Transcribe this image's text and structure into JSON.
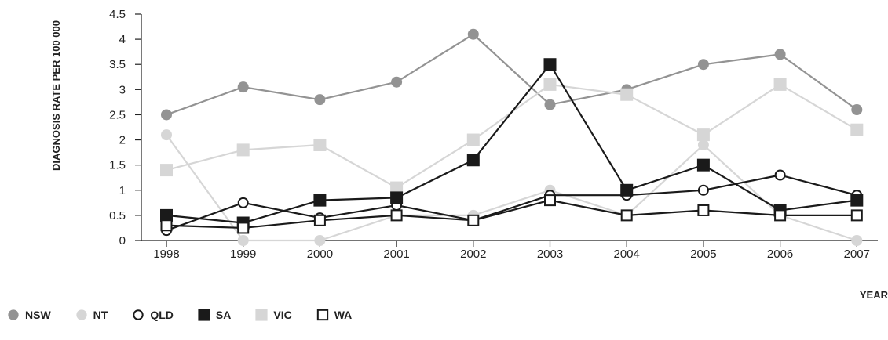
{
  "chart_data": {
    "type": "line",
    "ylabel": "DIAGNOSIS RATE PER 100 000",
    "xlabel": "YEAR",
    "categories": [
      "1998",
      "1999",
      "2000",
      "2001",
      "2002",
      "2003",
      "2004",
      "2005",
      "2006",
      "2007"
    ],
    "yticks": [
      "0",
      "0.5",
      "1",
      "1.5",
      "2",
      "2.5",
      "3",
      "3.5",
      "4",
      "4.5"
    ],
    "ylim": [
      0,
      4.5
    ],
    "grid": false,
    "legend_position": "bottom-left",
    "series": [
      {
        "name": "NSW",
        "color": "#939393",
        "marker": "circle-filled",
        "values": [
          2.5,
          3.05,
          2.8,
          3.15,
          4.1,
          2.7,
          3.0,
          3.5,
          3.7,
          2.6
        ]
      },
      {
        "name": "NT",
        "color": "#d6d6d6",
        "marker": "circle-filled",
        "values": [
          2.1,
          0.0,
          0.0,
          0.5,
          0.5,
          1.0,
          0.5,
          1.9,
          0.5,
          0.0
        ]
      },
      {
        "name": "QLD",
        "color": "#1a1a1a",
        "marker": "circle-open",
        "values": [
          0.2,
          0.75,
          0.45,
          0.7,
          0.4,
          0.9,
          0.9,
          1.0,
          1.3,
          0.9
        ]
      },
      {
        "name": "SA",
        "color": "#1a1a1a",
        "marker": "square-filled",
        "values": [
          0.5,
          0.35,
          0.8,
          0.85,
          1.6,
          3.5,
          1.0,
          1.5,
          0.6,
          0.8
        ]
      },
      {
        "name": "VIC",
        "color": "#d6d6d6",
        "marker": "square-filled",
        "values": [
          1.4,
          1.8,
          1.9,
          1.05,
          2.0,
          3.1,
          2.9,
          2.1,
          3.1,
          2.2
        ]
      },
      {
        "name": "WA",
        "color": "#1a1a1a",
        "marker": "square-open",
        "values": [
          0.3,
          0.25,
          0.4,
          0.5,
          0.4,
          0.8,
          0.5,
          0.6,
          0.5,
          0.5
        ]
      }
    ]
  }
}
